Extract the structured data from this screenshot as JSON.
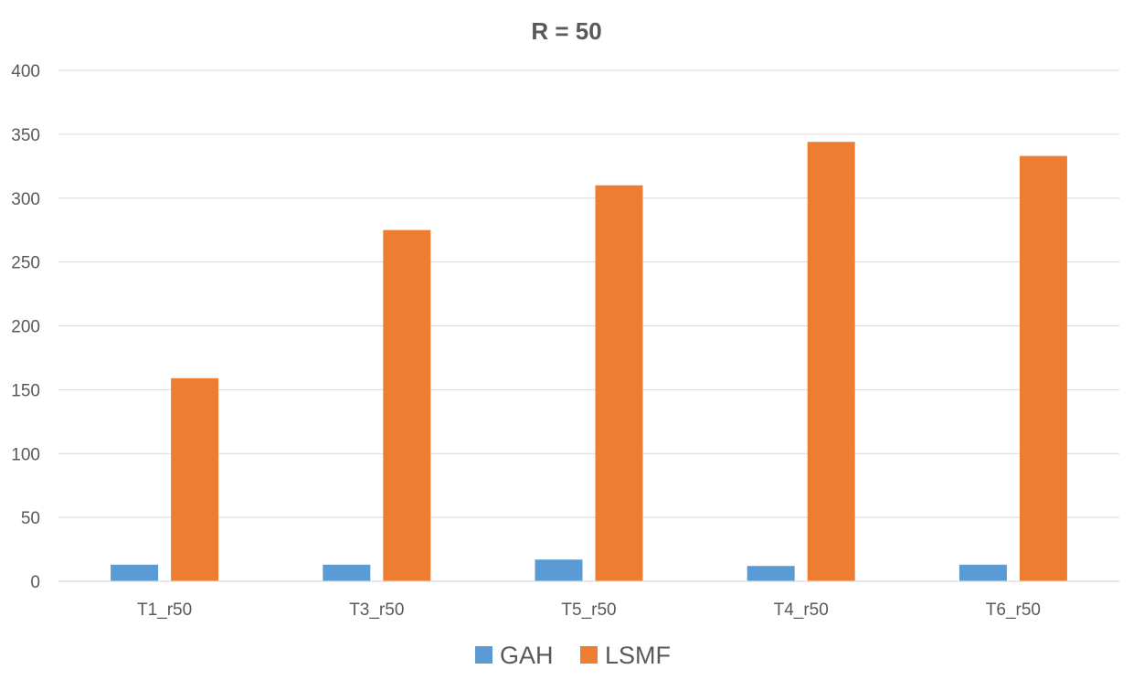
{
  "chart_data": {
    "type": "bar",
    "title": "R = 50",
    "xlabel": "",
    "ylabel": "",
    "categories": [
      "T1_r50",
      "T3_r50",
      "T5_r50",
      "T4_r50",
      "T6_r50"
    ],
    "series": [
      {
        "name": "GAH",
        "color": "#5b9bd5",
        "values": [
          13,
          13,
          17,
          12,
          13
        ]
      },
      {
        "name": "LSMF",
        "color": "#ed7d31",
        "values": [
          159,
          275,
          310,
          344,
          333
        ]
      }
    ],
    "ylim": [
      0,
      400
    ],
    "yticks": [
      0,
      50,
      100,
      150,
      200,
      250,
      300,
      350,
      400
    ],
    "grid": true,
    "legend": "bottom"
  }
}
